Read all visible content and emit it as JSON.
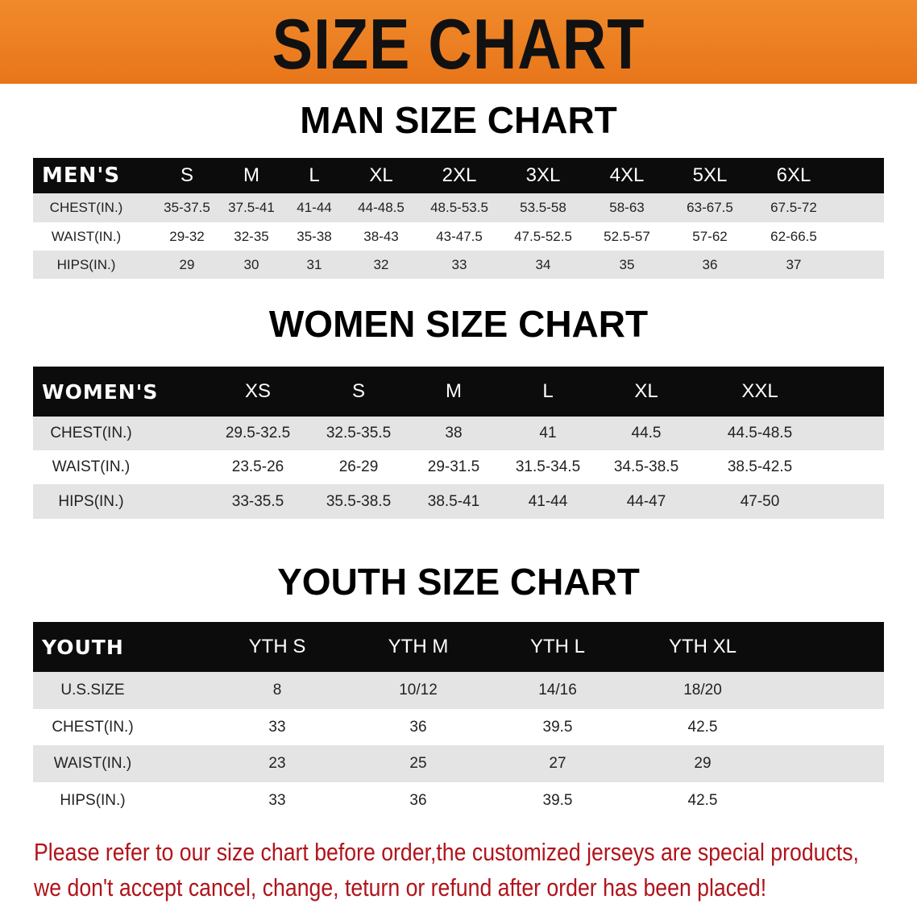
{
  "banner": {
    "title": "SIZE CHART",
    "color": "#e8761a"
  },
  "men": {
    "title": "MAN SIZE CHART",
    "header": [
      "MEN'S",
      "S",
      "M",
      "L",
      "XL",
      "2XL",
      "3XL",
      "4XL",
      "5XL",
      "6XL"
    ],
    "rows": [
      [
        "CHEST(IN.)",
        "35-37.5",
        "37.5-41",
        "41-44",
        "44-48.5",
        "48.5-53.5",
        "53.5-58",
        "58-63",
        "63-67.5",
        "67.5-72"
      ],
      [
        "WAIST(IN.)",
        "29-32",
        "32-35",
        "35-38",
        "38-43",
        "43-47.5",
        "47.5-52.5",
        "52.5-57",
        "57-62",
        "62-66.5"
      ],
      [
        "HIPS(IN.)",
        "29",
        "30",
        "31",
        "32",
        "33",
        "34",
        "35",
        "36",
        "37"
      ]
    ]
  },
  "women": {
    "title": "WOMEN SIZE CHART",
    "header": [
      "WOMEN'S",
      "XS",
      "S",
      "M",
      "L",
      "XL",
      "XXL"
    ],
    "rows": [
      [
        "CHEST(IN.)",
        "29.5-32.5",
        "32.5-35.5",
        "38",
        "41",
        "44.5",
        "44.5-48.5"
      ],
      [
        "WAIST(IN.)",
        "23.5-26",
        "26-29",
        "29-31.5",
        "31.5-34.5",
        "34.5-38.5",
        "38.5-42.5"
      ],
      [
        "HIPS(IN.)",
        "33-35.5",
        "35.5-38.5",
        "38.5-41",
        "41-44",
        "44-47",
        "47-50"
      ]
    ]
  },
  "youth": {
    "title": "YOUTH SIZE CHART",
    "header": [
      "YOUTH",
      "YTH S",
      "YTH M",
      "YTH L",
      "YTH XL"
    ],
    "rows": [
      [
        "U.S.SIZE",
        "8",
        "10/12",
        "14/16",
        "18/20"
      ],
      [
        "CHEST(IN.)",
        "33",
        "36",
        "39.5",
        "42.5"
      ],
      [
        "WAIST(IN.)",
        "23",
        "25",
        "27",
        "29"
      ],
      [
        "HIPS(IN.)",
        "33",
        "36",
        "39.5",
        "42.5"
      ]
    ]
  },
  "notice": {
    "line1": "Please refer to our size chart before order,the customized jerseys are special products,",
    "line2": "we don't accept cancel, change, teturn or refund after order has been placed!",
    "color": "#b0141b"
  }
}
